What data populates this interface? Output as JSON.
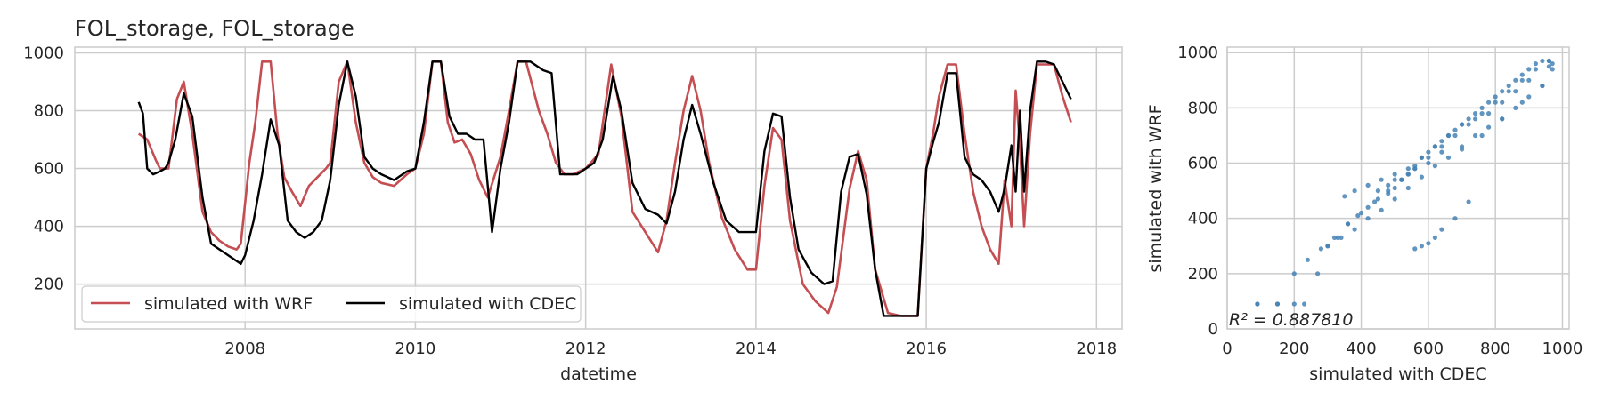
{
  "chart_data": [
    {
      "type": "line",
      "title": "FOL_storage, FOL_storage",
      "xlabel": "datetime",
      "ylabel": "",
      "xlim": [
        2006.0,
        2018.3
      ],
      "ylim": [
        45,
        1020
      ],
      "x_ticks": [
        2008,
        2010,
        2012,
        2014,
        2016,
        2018
      ],
      "y_ticks": [
        200,
        400,
        600,
        800,
        1000
      ],
      "grid": true,
      "legend": "lower-left",
      "series": [
        {
          "name": "simulated with WRF",
          "color": "#c44e52",
          "x": [
            2006.75,
            2006.85,
            2006.95,
            2007.0,
            2007.1,
            2007.2,
            2007.28,
            2007.38,
            2007.5,
            2007.6,
            2007.7,
            2007.8,
            2007.9,
            2007.95,
            2008.0,
            2008.05,
            2008.12,
            2008.2,
            2008.3,
            2008.38,
            2008.46,
            2008.55,
            2008.65,
            2008.75,
            2008.85,
            2008.95,
            2009.0,
            2009.1,
            2009.2,
            2009.3,
            2009.4,
            2009.5,
            2009.6,
            2009.75,
            2009.9,
            2010.0,
            2010.1,
            2010.2,
            2010.3,
            2010.38,
            2010.46,
            2010.55,
            2010.65,
            2010.75,
            2010.85,
            2011.0,
            2011.1,
            2011.2,
            2011.3,
            2011.45,
            2011.55,
            2011.65,
            2011.75,
            2011.85,
            2012.0,
            2012.15,
            2012.3,
            2012.42,
            2012.55,
            2012.7,
            2012.85,
            2012.95,
            2013.05,
            2013.15,
            2013.25,
            2013.35,
            2013.45,
            2013.6,
            2013.75,
            2013.9,
            2014.0,
            2014.1,
            2014.2,
            2014.3,
            2014.4,
            2014.55,
            2014.7,
            2014.85,
            2014.95,
            2015.1,
            2015.2,
            2015.3,
            2015.4,
            2015.55,
            2015.7,
            2015.8,
            2015.9,
            2016.0,
            2016.08,
            2016.15,
            2016.25,
            2016.35,
            2016.45,
            2016.55,
            2016.65,
            2016.75,
            2016.85,
            2016.92,
            2017.0,
            2017.05,
            2017.1,
            2017.15,
            2017.22,
            2017.3,
            2017.4,
            2017.5,
            2017.6,
            2017.7
          ],
          "values": [
            720,
            700,
            630,
            600,
            600,
            840,
            900,
            720,
            450,
            380,
            350,
            330,
            320,
            340,
            480,
            620,
            760,
            970,
            970,
            720,
            570,
            520,
            470,
            540,
            570,
            600,
            620,
            900,
            970,
            760,
            620,
            570,
            550,
            540,
            580,
            600,
            720,
            970,
            970,
            760,
            690,
            700,
            650,
            560,
            500,
            640,
            800,
            970,
            970,
            800,
            720,
            620,
            580,
            580,
            600,
            650,
            960,
            780,
            450,
            380,
            310,
            420,
            620,
            800,
            920,
            800,
            620,
            430,
            320,
            250,
            250,
            540,
            740,
            700,
            420,
            200,
            140,
            100,
            190,
            530,
            660,
            560,
            250,
            100,
            90,
            90,
            90,
            600,
            720,
            850,
            960,
            960,
            720,
            520,
            400,
            320,
            270,
            560,
            400,
            870,
            680,
            400,
            720,
            960,
            960,
            960,
            850,
            760
          ]
        },
        {
          "name": "simulated with CDEC",
          "color": "#000000",
          "x": [
            2006.75,
            2006.8,
            2006.85,
            2006.92,
            2007.0,
            2007.06,
            2007.1,
            2007.18,
            2007.28,
            2007.38,
            2007.5,
            2007.6,
            2007.7,
            2007.8,
            2007.9,
            2007.95,
            2008.0,
            2008.1,
            2008.2,
            2008.3,
            2008.4,
            2008.5,
            2008.6,
            2008.7,
            2008.8,
            2008.9,
            2009.0,
            2009.1,
            2009.2,
            2009.3,
            2009.4,
            2009.5,
            2009.6,
            2009.75,
            2009.9,
            2010.0,
            2010.1,
            2010.2,
            2010.3,
            2010.4,
            2010.5,
            2010.6,
            2010.7,
            2010.8,
            2010.9,
            2011.0,
            2011.1,
            2011.2,
            2011.35,
            2011.5,
            2011.6,
            2011.7,
            2011.8,
            2011.9,
            2012.0,
            2012.1,
            2012.2,
            2012.32,
            2012.42,
            2012.55,
            2012.7,
            2012.85,
            2012.95,
            2013.05,
            2013.15,
            2013.25,
            2013.35,
            2013.5,
            2013.65,
            2013.8,
            2013.9,
            2014.0,
            2014.1,
            2014.2,
            2014.3,
            2014.4,
            2014.5,
            2014.65,
            2014.8,
            2014.9,
            2015.0,
            2015.1,
            2015.2,
            2015.3,
            2015.4,
            2015.5,
            2015.6,
            2015.7,
            2015.8,
            2015.9,
            2016.0,
            2016.08,
            2016.15,
            2016.25,
            2016.35,
            2016.45,
            2016.55,
            2016.65,
            2016.75,
            2016.85,
            2016.92,
            2017.0,
            2017.05,
            2017.1,
            2017.15,
            2017.22,
            2017.3,
            2017.4,
            2017.5,
            2017.6,
            2017.7
          ],
          "values": [
            830,
            790,
            600,
            580,
            590,
            600,
            620,
            700,
            860,
            780,
            500,
            340,
            320,
            300,
            280,
            270,
            300,
            420,
            580,
            770,
            680,
            420,
            380,
            360,
            380,
            420,
            560,
            820,
            970,
            850,
            640,
            600,
            580,
            560,
            590,
            600,
            760,
            970,
            970,
            780,
            720,
            720,
            700,
            700,
            380,
            600,
            760,
            970,
            970,
            940,
            930,
            580,
            580,
            580,
            600,
            620,
            700,
            920,
            800,
            550,
            460,
            440,
            410,
            520,
            700,
            820,
            720,
            550,
            420,
            380,
            380,
            380,
            660,
            790,
            780,
            500,
            320,
            240,
            200,
            210,
            520,
            640,
            650,
            510,
            250,
            90,
            90,
            90,
            90,
            90,
            600,
            690,
            760,
            930,
            930,
            640,
            580,
            560,
            520,
            450,
            530,
            680,
            520,
            800,
            520,
            800,
            970,
            970,
            960,
            900,
            840
          ]
        }
      ]
    },
    {
      "type": "scatter",
      "title": "",
      "xlabel": "simulated with CDEC",
      "ylabel": "simulated with WRF",
      "xlim": [
        0,
        1020
      ],
      "ylim": [
        0,
        1020
      ],
      "x_ticks": [
        0,
        200,
        400,
        600,
        800,
        1000
      ],
      "y_ticks": [
        0,
        200,
        400,
        600,
        800,
        1000
      ],
      "grid": true,
      "color": "#4682b4",
      "annotation": "R² = 0.887810",
      "x": [
        90,
        150,
        200,
        230,
        270,
        300,
        330,
        360,
        390,
        420,
        450,
        480,
        500,
        520,
        540,
        560,
        580,
        600,
        620,
        640,
        660,
        680,
        700,
        720,
        740,
        760,
        780,
        800,
        820,
        840,
        860,
        880,
        900,
        920,
        940,
        960,
        970,
        90,
        150,
        200,
        240,
        280,
        320,
        360,
        400,
        440,
        480,
        520,
        560,
        600,
        640,
        680,
        720,
        760,
        800,
        840,
        880,
        920,
        960,
        300,
        340,
        380,
        420,
        460,
        500,
        540,
        580,
        620,
        660,
        700,
        740,
        780,
        820,
        860,
        900,
        940,
        560,
        580,
        600,
        620,
        640,
        680,
        720,
        540,
        500,
        460,
        420,
        380,
        350,
        600,
        640,
        560,
        520,
        480,
        450,
        700,
        760,
        820,
        880,
        940,
        970,
        960,
        900,
        860,
        820,
        780,
        740,
        700,
        660,
        620,
        580,
        540,
        500
      ],
      "y": [
        90,
        90,
        90,
        90,
        200,
        300,
        330,
        380,
        410,
        440,
        470,
        490,
        510,
        540,
        560,
        590,
        620,
        640,
        660,
        680,
        700,
        720,
        740,
        760,
        780,
        800,
        820,
        840,
        860,
        880,
        900,
        920,
        940,
        960,
        970,
        970,
        960,
        90,
        90,
        200,
        250,
        290,
        330,
        380,
        420,
        460,
        500,
        540,
        580,
        620,
        660,
        700,
        740,
        780,
        820,
        860,
        900,
        940,
        970,
        300,
        330,
        360,
        400,
        430,
        470,
        510,
        550,
        590,
        620,
        660,
        700,
        730,
        760,
        800,
        840,
        880,
        290,
        300,
        310,
        330,
        360,
        400,
        460,
        560,
        560,
        540,
        520,
        500,
        480,
        600,
        640,
        580,
        540,
        520,
        500,
        650,
        700,
        760,
        820,
        880,
        940,
        950,
        900,
        860,
        820,
        780,
        760,
        740,
        700,
        660,
        620,
        580,
        540
      ]
    }
  ]
}
